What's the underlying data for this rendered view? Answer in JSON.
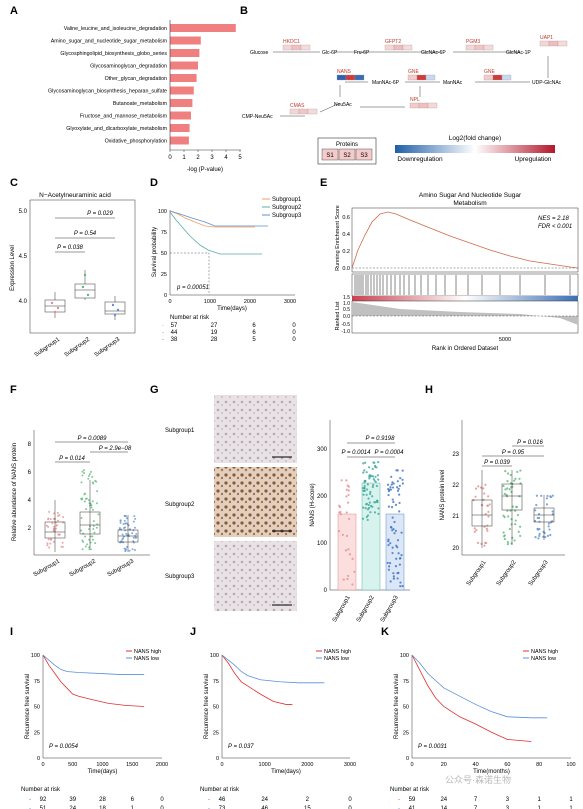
{
  "panels": {
    "A": "A",
    "B": "B",
    "C": "C",
    "D": "D",
    "E": "E",
    "F": "F",
    "G": "G",
    "H": "H",
    "I": "I",
    "J": "J",
    "K": "K"
  },
  "panelA": {
    "categories": [
      "Valine_leucine_and_isoleucine_degradation",
      "Amino_sugar_and_nucleotide_sugar_metabolism",
      "Glycosphingolipid_biosynthesis_globo_series",
      "Glycosaminoglycan_degradation",
      "Other_glycan_degradation",
      "Glycosaminoglycan_biosynthesis_heparan_sulfate",
      "Butanoate_metabolism",
      "Fructose_and_mannose_metabolism",
      "Glyoxylate_and_dicarboxylate_metabolism",
      "Oxidative_phosphorylation"
    ],
    "values": [
      4.7,
      2.2,
      2.1,
      2.0,
      1.9,
      1.7,
      1.6,
      1.5,
      1.4,
      1.35
    ],
    "ticks": [
      "0",
      "1",
      "2",
      "3",
      "4",
      "5"
    ],
    "xlabel": "-log (P-value)",
    "color": "#f08080"
  },
  "panelB": {
    "nodes": [
      "Glucose",
      "HKDC1",
      "Glc-6P",
      "Fru-6P",
      "GFPT2",
      "GlcNAc-6P",
      "PGM3",
      "GlcNAc-1P",
      "UAP1",
      "UDP-GlcNAc",
      "GNE",
      "ManNAc",
      "GNE",
      "ManNAc-6P",
      "NANS",
      "Neu5Ac",
      "NPL",
      "CMAS",
      "CMP-Neu5Ac"
    ],
    "proteins_title": "Proteins",
    "proteins": [
      "S1",
      "S2",
      "S3"
    ],
    "legend_title": "Log2(fold change)",
    "legend_low": "Downregulation",
    "legend_high": "Upregulation"
  },
  "panelC": {
    "title": "N−Acetylneuraminic acid",
    "ylabel": "Expression Level",
    "yticks": [
      "4.0",
      "4.5",
      "5.0"
    ],
    "groups": [
      "Subgroup1",
      "Subgroup2",
      "Subgroup3"
    ],
    "pvals": [
      "P = 0.029",
      "P = 0.54",
      "P = 0.038"
    ]
  },
  "panelD": {
    "legend": [
      "Subgroup1",
      "Subgroup2",
      "Subgroup3"
    ],
    "colors": [
      "#f0a060",
      "#5ab0a0",
      "#6090d0"
    ],
    "ylabel": "Survival probability",
    "xlabel": "Time(days)",
    "pval": "p = 0.00051",
    "yticks": [
      "0",
      "25",
      "50",
      "75",
      "100"
    ],
    "xticks": [
      "0",
      "1000",
      "2000",
      "3000"
    ],
    "risk_title": "Number at risk",
    "risk": [
      [
        "57",
        "27",
        "6",
        "0"
      ],
      [
        "44",
        "19",
        "6",
        "0"
      ],
      [
        "38",
        "28",
        "5",
        "0"
      ]
    ]
  },
  "panelE": {
    "title1": "Amino Sugar And Nucleotide Sugar",
    "title2": "Metabolism",
    "nes": "NES = 2.18",
    "fdr": "FDR < 0.001",
    "ylabel1": "Running Enrichment Score",
    "ylabel2": "Ranked List",
    "yticks1": [
      "0.0",
      "0.2",
      "0.4",
      "0.6"
    ],
    "yticks2": [
      "-1.0",
      "-0.5",
      "0.0",
      "0.5",
      "1.0",
      "1.5"
    ],
    "xtick": "5000",
    "xlabel": "Rank in Ordered Dataset"
  },
  "panelF": {
    "ylabel": "Relative abundance of NANS protein",
    "yticks": [
      "2",
      "4",
      "6",
      "8"
    ],
    "groups": [
      "Subgroup1",
      "Subgroup2",
      "Subgroup3"
    ],
    "pvals": [
      "P = 0.0089",
      "P = 2.9e−08",
      "P = 0.014"
    ]
  },
  "panelG": {
    "rows": [
      "Subgroup1",
      "Subgroup2",
      "Subgroup3"
    ],
    "ylabel": "NANS (H-score)",
    "yticks": [
      "0",
      "100",
      "200",
      "300"
    ],
    "groups": [
      "Subgroup1",
      "Subgroup2",
      "Subgroup3"
    ],
    "pvals": [
      "P = 0.9198",
      "P = 0.0014",
      "P = 0.0004"
    ]
  },
  "panelH": {
    "ylabel": "NANS protein level",
    "yticks": [
      "20",
      "21",
      "22",
      "23"
    ],
    "groups": [
      "Subgroup1",
      "Subgroup2",
      "Subgroup3"
    ],
    "pvals": [
      "P = 0.016",
      "P = 0.95",
      "P = 0.039"
    ]
  },
  "panelI": {
    "legend": [
      "NANS high",
      "NANS low"
    ],
    "ylabel": "Recurrence free survival",
    "xlabel": "Time(days)",
    "pval": "P = 0.0054",
    "yticks": [
      "0",
      "25",
      "50",
      "75",
      "100"
    ],
    "xticks": [
      "0",
      "500",
      "1000",
      "1500",
      "2000"
    ],
    "risk_title": "Number at risk",
    "risk": [
      [
        "92",
        "39",
        "28",
        "6",
        "0"
      ],
      [
        "51",
        "24",
        "18",
        "1",
        "0"
      ]
    ]
  },
  "panelJ": {
    "legend": [
      "NANS high",
      "NANS low"
    ],
    "ylabel": "Recurrence free survival",
    "xlabel": "Time(days)",
    "pval": "P = 0.037",
    "yticks": [
      "0",
      "25",
      "50",
      "75",
      "100"
    ],
    "xticks": [
      "0",
      "1000",
      "2000",
      "3000"
    ],
    "risk_title": "Number at risk",
    "risk": [
      [
        "46",
        "24",
        "2",
        "0"
      ],
      [
        "73",
        "46",
        "15",
        "0"
      ]
    ]
  },
  "panelK": {
    "legend": [
      "NANS high",
      "NANS low"
    ],
    "ylabel": "Recurrence free survival",
    "xlabel": "Time(months)",
    "pval": "P = 0.0031",
    "yticks": [
      "0",
      "25",
      "50",
      "75",
      "100"
    ],
    "xticks": [
      "0",
      "20",
      "40",
      "60",
      "80",
      "100"
    ],
    "risk_title": "Number at risk",
    "risk": [
      [
        "59",
        "24",
        "7",
        "3",
        "1",
        "1"
      ],
      [
        "41",
        "14",
        "7",
        "3",
        "1",
        "1"
      ]
    ],
    "watermark": "公众号·森诺生物"
  },
  "chart_data": [
    {
      "type": "bar",
      "categories": [
        "Valine_leucine_and_isoleucine_degradation",
        "Amino_sugar_and_nucleotide_sugar_metabolism",
        "Glycosphingolipid_biosynthesis_globo_series",
        "Glycosaminoglycan_degradation",
        "Other_glycan_degradation",
        "Glycosaminoglycan_biosynthesis_heparan_sulfate",
        "Butanoate_metabolism",
        "Fructose_and_mannose_metabolism",
        "Glyoxylate_and_dicarboxylate_metabolism",
        "Oxidative_phosphorylation"
      ],
      "values": [
        4.7,
        2.2,
        2.1,
        2.0,
        1.9,
        1.7,
        1.6,
        1.5,
        1.4,
        1.35
      ],
      "xlabel": "-log (P-value)",
      "xlim": [
        0,
        5
      ]
    }
  ]
}
